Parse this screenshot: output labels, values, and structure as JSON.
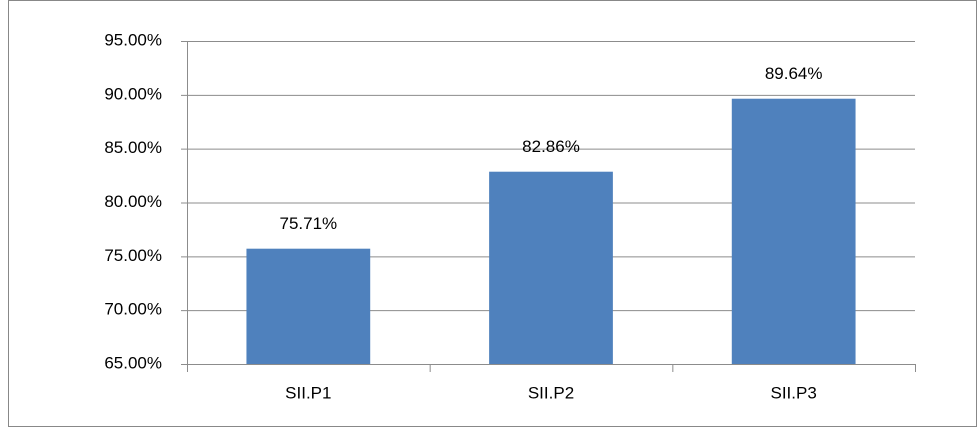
{
  "chart_data": {
    "type": "bar",
    "categories": [
      "SII.P1",
      "SII.P2",
      "SII.P3"
    ],
    "values": [
      75.71,
      82.86,
      89.64
    ],
    "value_labels": [
      "75.71%",
      "82.86%",
      "89.64%"
    ],
    "color": "#4f81bd",
    "ylim": [
      65,
      95
    ],
    "yticks": [
      {
        "value": 65,
        "label": "65.00%"
      },
      {
        "value": 70,
        "label": "70.00%"
      },
      {
        "value": 75,
        "label": "75.00%"
      },
      {
        "value": 80,
        "label": "80.00%"
      },
      {
        "value": 85,
        "label": "85.00%"
      },
      {
        "value": 90,
        "label": "90.00%"
      },
      {
        "value": 95,
        "label": "95.00%"
      }
    ],
    "grid": true
  }
}
